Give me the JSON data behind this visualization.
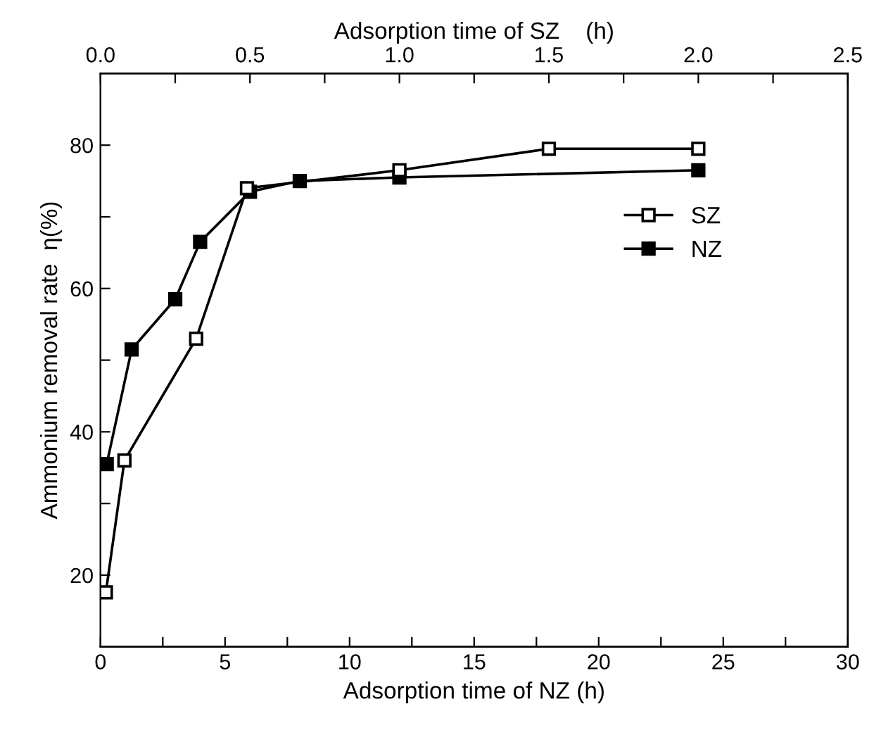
{
  "chart_data": {
    "type": "line",
    "xlabel": "Adsorption time of NZ (h)",
    "x2label": "Adsorption time of SZ    (h)",
    "ylabel": "Ammonium removal rate  η(%)",
    "xlim": [
      0,
      30
    ],
    "xticks": [
      0,
      {
        "value": 2.5,
        "label": null
      },
      5,
      {
        "value": 7.5,
        "label": null
      },
      10,
      {
        "value": 12.5,
        "label": null
      },
      15,
      {
        "value": 17.5,
        "label": null
      },
      20,
      {
        "value": 22.5,
        "label": null
      },
      25,
      {
        "value": 27.5,
        "label": null
      },
      30
    ],
    "x2lim": [
      0,
      2.5
    ],
    "x2ticks": [
      {
        "value": 0,
        "label": "0.0"
      },
      {
        "value": 0.25,
        "label": null
      },
      0.5,
      {
        "value": 0.75,
        "label": null
      },
      {
        "value": 1,
        "label": "1.0"
      },
      {
        "value": 1.25,
        "label": null
      },
      1.5,
      {
        "value": 1.75,
        "label": null
      },
      {
        "value": 2,
        "label": "2.0"
      },
      {
        "value": 2.25,
        "label": null
      },
      2.5
    ],
    "ylim": [
      10,
      90
    ],
    "yticks": [
      20,
      {
        "value": 30,
        "label": null
      },
      40,
      {
        "value": 50,
        "label": null
      },
      60,
      {
        "value": 70,
        "label": null
      },
      80
    ],
    "grid": false,
    "legend": "right",
    "line_style": "solid",
    "series": [
      {
        "name": "SZ",
        "color": "#000000",
        "marker": "square",
        "axis": "x2",
        "x": [
          0.018,
          0.08,
          0.32,
          0.49,
          1.0,
          1.5,
          2.0
        ],
        "values": [
          17.6,
          36,
          53,
          74,
          76.5,
          79.5,
          79.5
        ]
      },
      {
        "name": "NZ",
        "color": "#000000",
        "marker": "square",
        "x": [
          0.25,
          1.25,
          3,
          4,
          6,
          8,
          12,
          24
        ],
        "values": [
          35.5,
          51.5,
          58.5,
          66.5,
          73.5,
          75,
          75.5,
          76.5
        ]
      }
    ]
  }
}
